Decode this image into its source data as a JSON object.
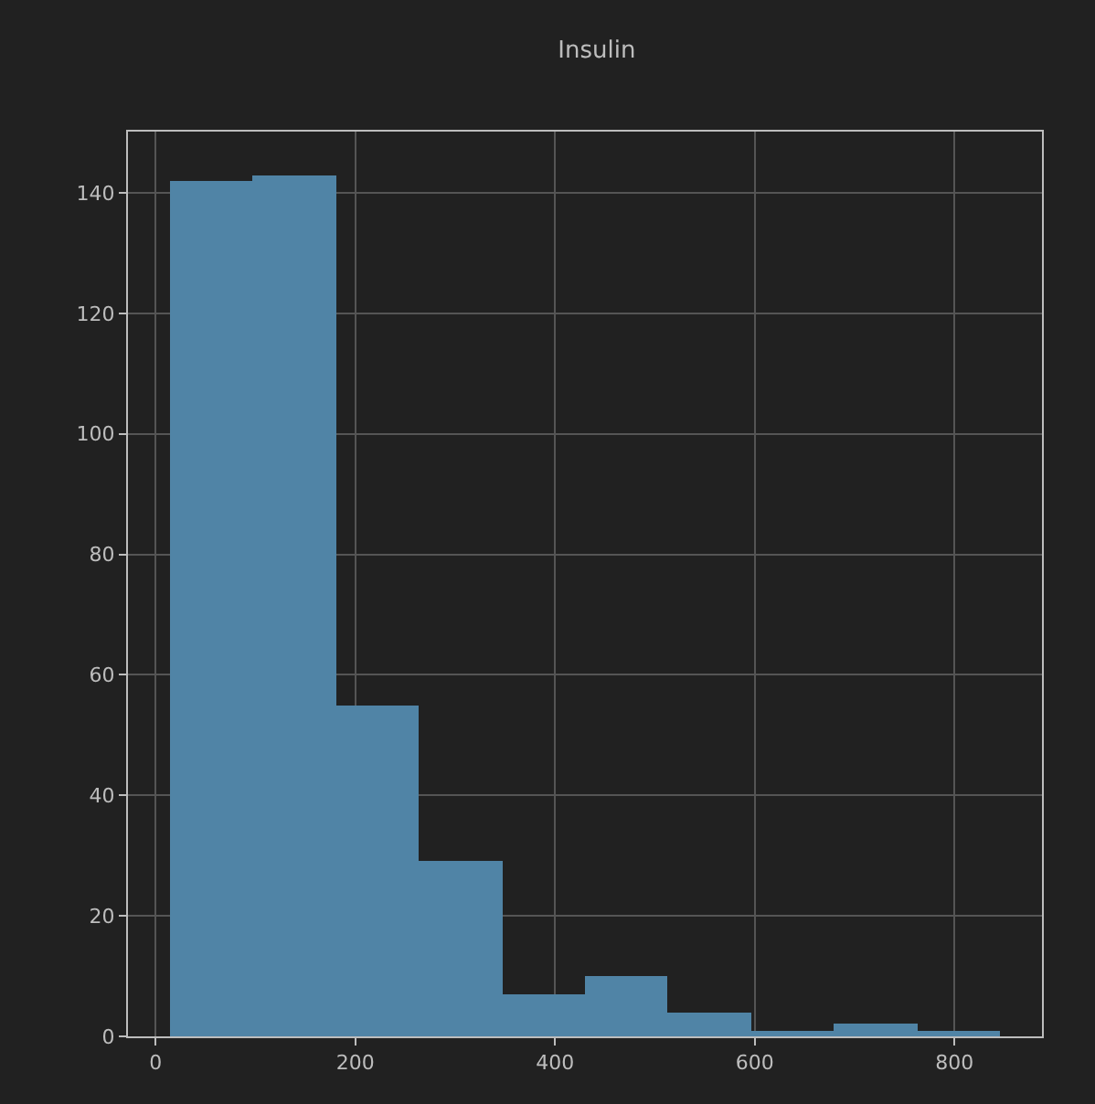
{
  "chart_data": {
    "type": "histogram",
    "title": "Insulin",
    "bins": [
      14,
      97.2,
      180.4,
      263.6,
      346.8,
      430,
      513.2,
      596.4,
      679.6,
      762.8,
      846
    ],
    "values": [
      142,
      143,
      55,
      29,
      7,
      10,
      4,
      1,
      2,
      1
    ],
    "color": "#5084a6",
    "xlim": [
      -27.6,
      887.6
    ],
    "xticks": [
      0,
      200,
      400,
      600,
      800
    ],
    "ylim": [
      0,
      150.15
    ],
    "yticks": [
      0,
      20,
      40,
      60,
      80,
      100,
      120,
      140
    ],
    "grid": true
  }
}
